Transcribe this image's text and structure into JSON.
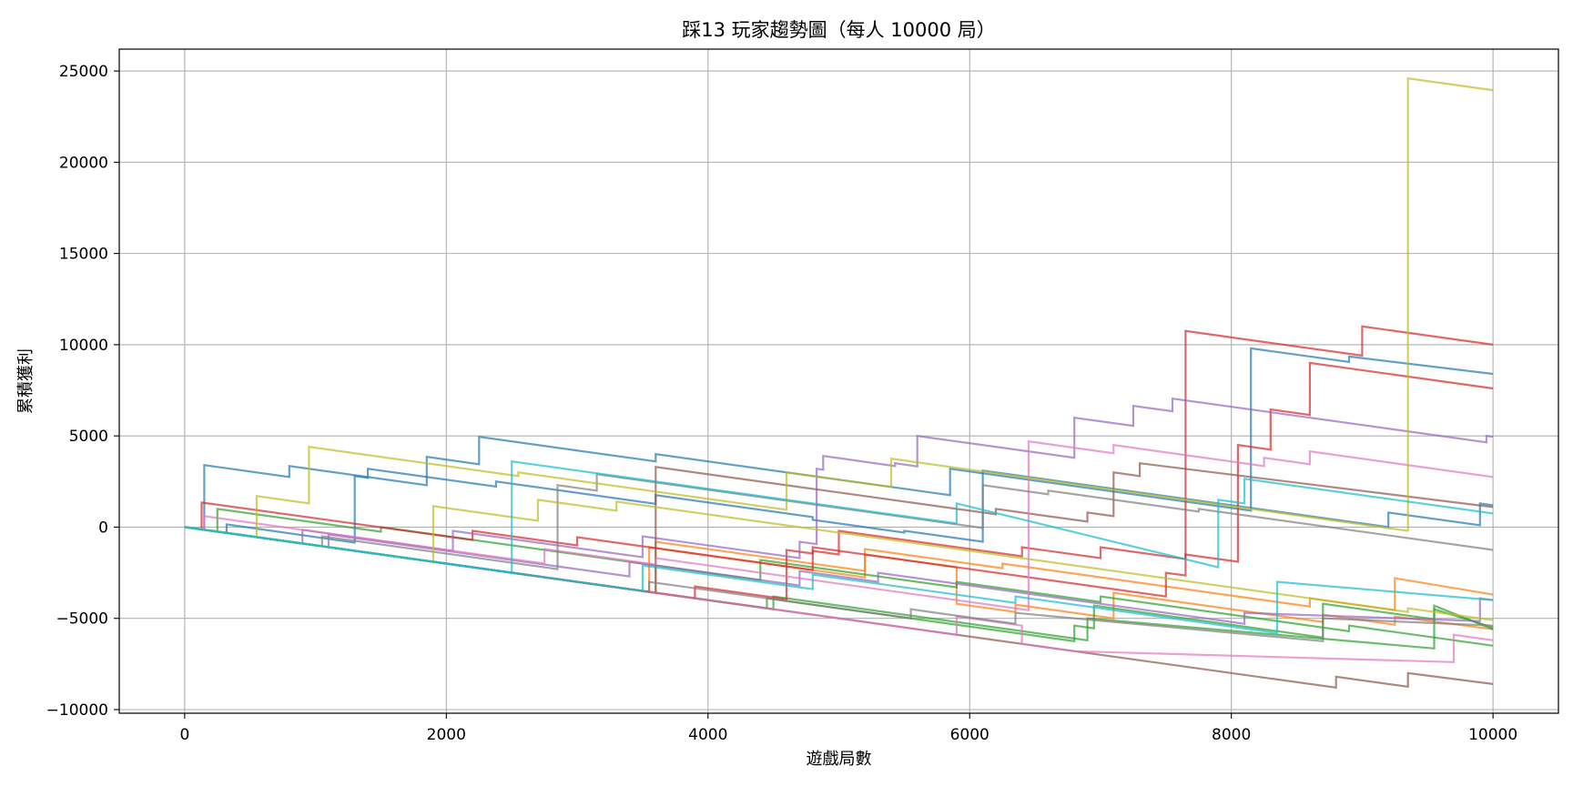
{
  "chart_data": {
    "type": "line",
    "title": "踩13 玩家趨勢圖（每人 10000 局）",
    "xlabel": "遊戲局數",
    "ylabel": "累積獲利",
    "xlim": [
      -500,
      10500
    ],
    "ylim": [
      -10200,
      26200
    ],
    "xticks": [
      0,
      2000,
      4000,
      6000,
      8000,
      10000
    ],
    "yticks": [
      -10000,
      -5000,
      0,
      5000,
      10000,
      15000,
      20000,
      25000
    ],
    "grid": true,
    "legend": "none",
    "series": [
      {
        "color": "#1f77b4",
        "points": [
          [
            0,
            0
          ],
          [
            150,
            -150
          ],
          [
            150,
            3400
          ],
          [
            800,
            2750
          ],
          [
            800,
            3350
          ],
          [
            1850,
            2300
          ],
          [
            1850,
            3850
          ],
          [
            2250,
            3450
          ],
          [
            2250,
            4950
          ],
          [
            3600,
            3600
          ],
          [
            3600,
            4000
          ],
          [
            5850,
            1750
          ],
          [
            5850,
            3200
          ],
          [
            8050,
            1000
          ],
          [
            8150,
            900
          ],
          [
            8150,
            9800
          ],
          [
            8900,
            9050
          ],
          [
            8900,
            9350
          ],
          [
            10000,
            8400
          ]
        ]
      },
      {
        "color": "#1f77b4",
        "points": [
          [
            0,
            0
          ],
          [
            320,
            -320
          ],
          [
            320,
            150
          ],
          [
            1300,
            -850
          ],
          [
            1300,
            2800
          ],
          [
            1400,
            2700
          ],
          [
            1400,
            3200
          ],
          [
            2380,
            2220
          ],
          [
            2380,
            2500
          ],
          [
            3600,
            1280
          ],
          [
            3600,
            1750
          ],
          [
            4800,
            550
          ],
          [
            4800,
            400
          ],
          [
            5500,
            -300
          ],
          [
            5500,
            -200
          ],
          [
            6100,
            -800
          ],
          [
            6100,
            3100
          ],
          [
            9200,
            0
          ],
          [
            9200,
            800
          ],
          [
            9900,
            100
          ],
          [
            9900,
            1300
          ],
          [
            10000,
            1200
          ]
        ]
      },
      {
        "color": "#ff7f0e",
        "points": [
          [
            0,
            0
          ],
          [
            3600,
            -3600
          ],
          [
            3600,
            -800
          ],
          [
            5200,
            -2400
          ],
          [
            5200,
            -1500
          ],
          [
            5900,
            -2200
          ],
          [
            5900,
            -4200
          ],
          [
            6350,
            -4650
          ],
          [
            6350,
            -4250
          ],
          [
            7100,
            -5000
          ],
          [
            7100,
            -3600
          ],
          [
            8700,
            -5200
          ],
          [
            8700,
            -4800
          ],
          [
            9250,
            -5350
          ],
          [
            9250,
            -4900
          ],
          [
            10000,
            -5600
          ]
        ]
      },
      {
        "color": "#ff7f0e",
        "points": [
          [
            0,
            0
          ],
          [
            3550,
            -3550
          ],
          [
            3550,
            -1100
          ],
          [
            5200,
            -2750
          ],
          [
            5200,
            -1200
          ],
          [
            6250,
            -2250
          ],
          [
            6250,
            -2000
          ],
          [
            8600,
            -4350
          ],
          [
            8600,
            -3900
          ],
          [
            9250,
            -4550
          ],
          [
            9250,
            -2800
          ],
          [
            10000,
            -3700
          ]
        ]
      },
      {
        "color": "#2ca02c",
        "points": [
          [
            0,
            0
          ],
          [
            250,
            -250
          ],
          [
            250,
            1000
          ],
          [
            1500,
            -250
          ],
          [
            1500,
            0
          ],
          [
            4400,
            -2900
          ],
          [
            4400,
            -1800
          ],
          [
            5900,
            -3300
          ],
          [
            5900,
            -3000
          ],
          [
            7000,
            -4100
          ],
          [
            7000,
            -3800
          ],
          [
            8900,
            -5700
          ],
          [
            8900,
            -5400
          ],
          [
            10000,
            -6500
          ]
        ]
      },
      {
        "color": "#2ca02c",
        "points": [
          [
            0,
            0
          ],
          [
            4450,
            -4450
          ],
          [
            4450,
            -3900
          ],
          [
            6800,
            -6250
          ],
          [
            6800,
            -5400
          ],
          [
            6950,
            -5550
          ],
          [
            6950,
            -4300
          ],
          [
            8700,
            -6050
          ],
          [
            8700,
            -4200
          ],
          [
            9550,
            -5050
          ],
          [
            9550,
            -4500
          ],
          [
            10000,
            -5500
          ]
        ]
      },
      {
        "color": "#2ca02c",
        "points": [
          [
            0,
            0
          ],
          [
            4500,
            -4500
          ],
          [
            4500,
            -3800
          ],
          [
            6900,
            -6200
          ],
          [
            6900,
            -5000
          ],
          [
            9550,
            -6650
          ],
          [
            9550,
            -4300
          ],
          [
            10000,
            -5600
          ]
        ]
      },
      {
        "color": "#d62728",
        "points": [
          [
            0,
            0
          ],
          [
            130,
            -130
          ],
          [
            130,
            1350
          ],
          [
            2200,
            -700
          ],
          [
            2200,
            -200
          ],
          [
            3000,
            -1000
          ],
          [
            3000,
            -550
          ],
          [
            4800,
            -2350
          ],
          [
            4800,
            -1300
          ],
          [
            5000,
            -1500
          ],
          [
            5000,
            -200
          ],
          [
            6400,
            -1600
          ],
          [
            6400,
            -1100
          ],
          [
            7000,
            -1700
          ],
          [
            7000,
            -1100
          ],
          [
            7650,
            -1750
          ],
          [
            7650,
            10750
          ],
          [
            8000,
            10400
          ],
          [
            8000,
            10400
          ],
          [
            9000,
            9400
          ],
          [
            9000,
            11000
          ],
          [
            10000,
            10000
          ]
        ]
      },
      {
        "color": "#d62728",
        "points": [
          [
            0,
            0
          ],
          [
            3900,
            -3900
          ],
          [
            3900,
            -3250
          ],
          [
            4600,
            -3950
          ],
          [
            4600,
            -1250
          ],
          [
            4800,
            -1450
          ],
          [
            4800,
            -1100
          ],
          [
            7500,
            -3800
          ],
          [
            7500,
            -2500
          ],
          [
            7650,
            -2650
          ],
          [
            7650,
            -1500
          ],
          [
            8050,
            -1900
          ],
          [
            8050,
            4500
          ],
          [
            8300,
            4250
          ],
          [
            8300,
            6450
          ],
          [
            8600,
            6150
          ],
          [
            8600,
            9000
          ],
          [
            10000,
            7600
          ]
        ]
      },
      {
        "color": "#9467bd",
        "points": [
          [
            0,
            0
          ],
          [
            900,
            -900
          ],
          [
            900,
            -150
          ],
          [
            2050,
            -1300
          ],
          [
            2050,
            -200
          ],
          [
            3500,
            -1650
          ],
          [
            3500,
            -500
          ],
          [
            4700,
            -1700
          ],
          [
            4700,
            -800
          ],
          [
            4830,
            -930
          ],
          [
            4830,
            3200
          ],
          [
            4880,
            3150
          ],
          [
            4880,
            3900
          ],
          [
            5430,
            3350
          ],
          [
            5430,
            3500
          ],
          [
            5600,
            3330
          ],
          [
            5600,
            5000
          ],
          [
            6800,
            3800
          ],
          [
            6800,
            6000
          ],
          [
            7250,
            5550
          ],
          [
            7250,
            6650
          ],
          [
            7550,
            6350
          ],
          [
            7550,
            7050
          ],
          [
            9950,
            4650
          ],
          [
            9950,
            5000
          ],
          [
            10000,
            4950
          ]
        ]
      },
      {
        "color": "#9467bd",
        "points": [
          [
            0,
            0
          ],
          [
            1100,
            -1100
          ],
          [
            1100,
            -400
          ],
          [
            3400,
            -2700
          ],
          [
            3400,
            -1900
          ],
          [
            4700,
            -3200
          ],
          [
            4700,
            -2400
          ],
          [
            5300,
            -3000
          ],
          [
            5300,
            -2500
          ],
          [
            8100,
            -5300
          ],
          [
            8100,
            -4700
          ],
          [
            9900,
            -5150
          ],
          [
            9900,
            -3900
          ],
          [
            10000,
            -4000
          ]
        ]
      },
      {
        "color": "#8c564b",
        "points": [
          [
            0,
            0
          ],
          [
            3600,
            -3600
          ],
          [
            3600,
            3300
          ],
          [
            6200,
            700
          ],
          [
            6200,
            1000
          ],
          [
            6900,
            300
          ],
          [
            6900,
            800
          ],
          [
            7100,
            600
          ],
          [
            7100,
            3000
          ],
          [
            7300,
            2800
          ],
          [
            7300,
            3500
          ],
          [
            10000,
            1100
          ]
        ]
      },
      {
        "color": "#8c564b",
        "points": [
          [
            0,
            0
          ],
          [
            8800,
            -8800
          ],
          [
            8800,
            -8200
          ],
          [
            9350,
            -8750
          ],
          [
            9350,
            -8000
          ],
          [
            10000,
            -8600
          ]
        ]
      },
      {
        "color": "#e377c2",
        "points": [
          [
            0,
            0
          ],
          [
            150,
            -150
          ],
          [
            150,
            600
          ],
          [
            2750,
            -2000
          ],
          [
            2750,
            -1200
          ],
          [
            3600,
            -2050
          ],
          [
            3600,
            -1700
          ],
          [
            6450,
            -4550
          ],
          [
            6450,
            4700
          ],
          [
            7100,
            4050
          ],
          [
            7100,
            4500
          ],
          [
            8250,
            3350
          ],
          [
            8250,
            3800
          ],
          [
            8600,
            3450
          ],
          [
            8600,
            4150
          ],
          [
            10000,
            2750
          ]
        ]
      },
      {
        "color": "#e377c2",
        "points": [
          [
            0,
            0
          ],
          [
            5900,
            -5900
          ],
          [
            5900,
            -4900
          ],
          [
            6400,
            -5400
          ],
          [
            6400,
            -6400
          ],
          [
            6800,
            -6800
          ],
          [
            9700,
            -7400
          ],
          [
            9700,
            -5900
          ],
          [
            10000,
            -6200
          ]
        ]
      },
      {
        "color": "#7f7f7f",
        "points": [
          [
            0,
            0
          ],
          [
            1050,
            -1050
          ],
          [
            1050,
            -500
          ],
          [
            2850,
            -2300
          ],
          [
            2850,
            2300
          ],
          [
            3150,
            2000
          ],
          [
            3150,
            2900
          ],
          [
            6100,
            -50
          ],
          [
            6100,
            2300
          ],
          [
            6600,
            1800
          ],
          [
            6600,
            2000
          ],
          [
            7750,
            850
          ],
          [
            7750,
            1000
          ],
          [
            10000,
            -1250
          ]
        ]
      },
      {
        "color": "#7f7f7f",
        "points": [
          [
            0,
            0
          ],
          [
            3550,
            -3550
          ],
          [
            3550,
            -3000
          ],
          [
            5550,
            -5000
          ],
          [
            5550,
            -4500
          ],
          [
            6350,
            -5300
          ],
          [
            6350,
            -4700
          ],
          [
            8700,
            -6250
          ],
          [
            8700,
            -5000
          ],
          [
            10000,
            -5400
          ]
        ]
      },
      {
        "color": "#bcbd22",
        "points": [
          [
            0,
            0
          ],
          [
            550,
            -550
          ],
          [
            550,
            1700
          ],
          [
            950,
            1300
          ],
          [
            950,
            4400
          ],
          [
            2550,
            2800
          ],
          [
            2550,
            3000
          ],
          [
            4600,
            950
          ],
          [
            4600,
            3000
          ],
          [
            4800,
            2800
          ],
          [
            5400,
            2200
          ],
          [
            5400,
            3750
          ],
          [
            9350,
            -200
          ],
          [
            9350,
            24600
          ],
          [
            10000,
            23950
          ]
        ]
      },
      {
        "color": "#bcbd22",
        "points": [
          [
            0,
            0
          ],
          [
            1900,
            -1900
          ],
          [
            1900,
            1150
          ],
          [
            2700,
            350
          ],
          [
            2700,
            1500
          ],
          [
            3300,
            900
          ],
          [
            3300,
            1400
          ],
          [
            9350,
            -4650
          ],
          [
            9350,
            -4450
          ],
          [
            10000,
            -5100
          ]
        ]
      },
      {
        "color": "#17becf",
        "points": [
          [
            0,
            0
          ],
          [
            2500,
            -2500
          ],
          [
            2500,
            3600
          ],
          [
            5900,
            200
          ],
          [
            5900,
            1300
          ],
          [
            7900,
            -2200
          ],
          [
            7900,
            1500
          ],
          [
            8100,
            1300
          ],
          [
            8100,
            2650
          ],
          [
            10000,
            750
          ]
        ]
      },
      {
        "color": "#17becf",
        "points": [
          [
            0,
            0
          ],
          [
            3500,
            -3500
          ],
          [
            3500,
            -2100
          ],
          [
            4800,
            -3400
          ],
          [
            4800,
            -2600
          ],
          [
            6350,
            -4150
          ],
          [
            6350,
            -3800
          ],
          [
            8350,
            -5800
          ],
          [
            8350,
            -3000
          ],
          [
            10000,
            -4000
          ]
        ]
      }
    ]
  }
}
